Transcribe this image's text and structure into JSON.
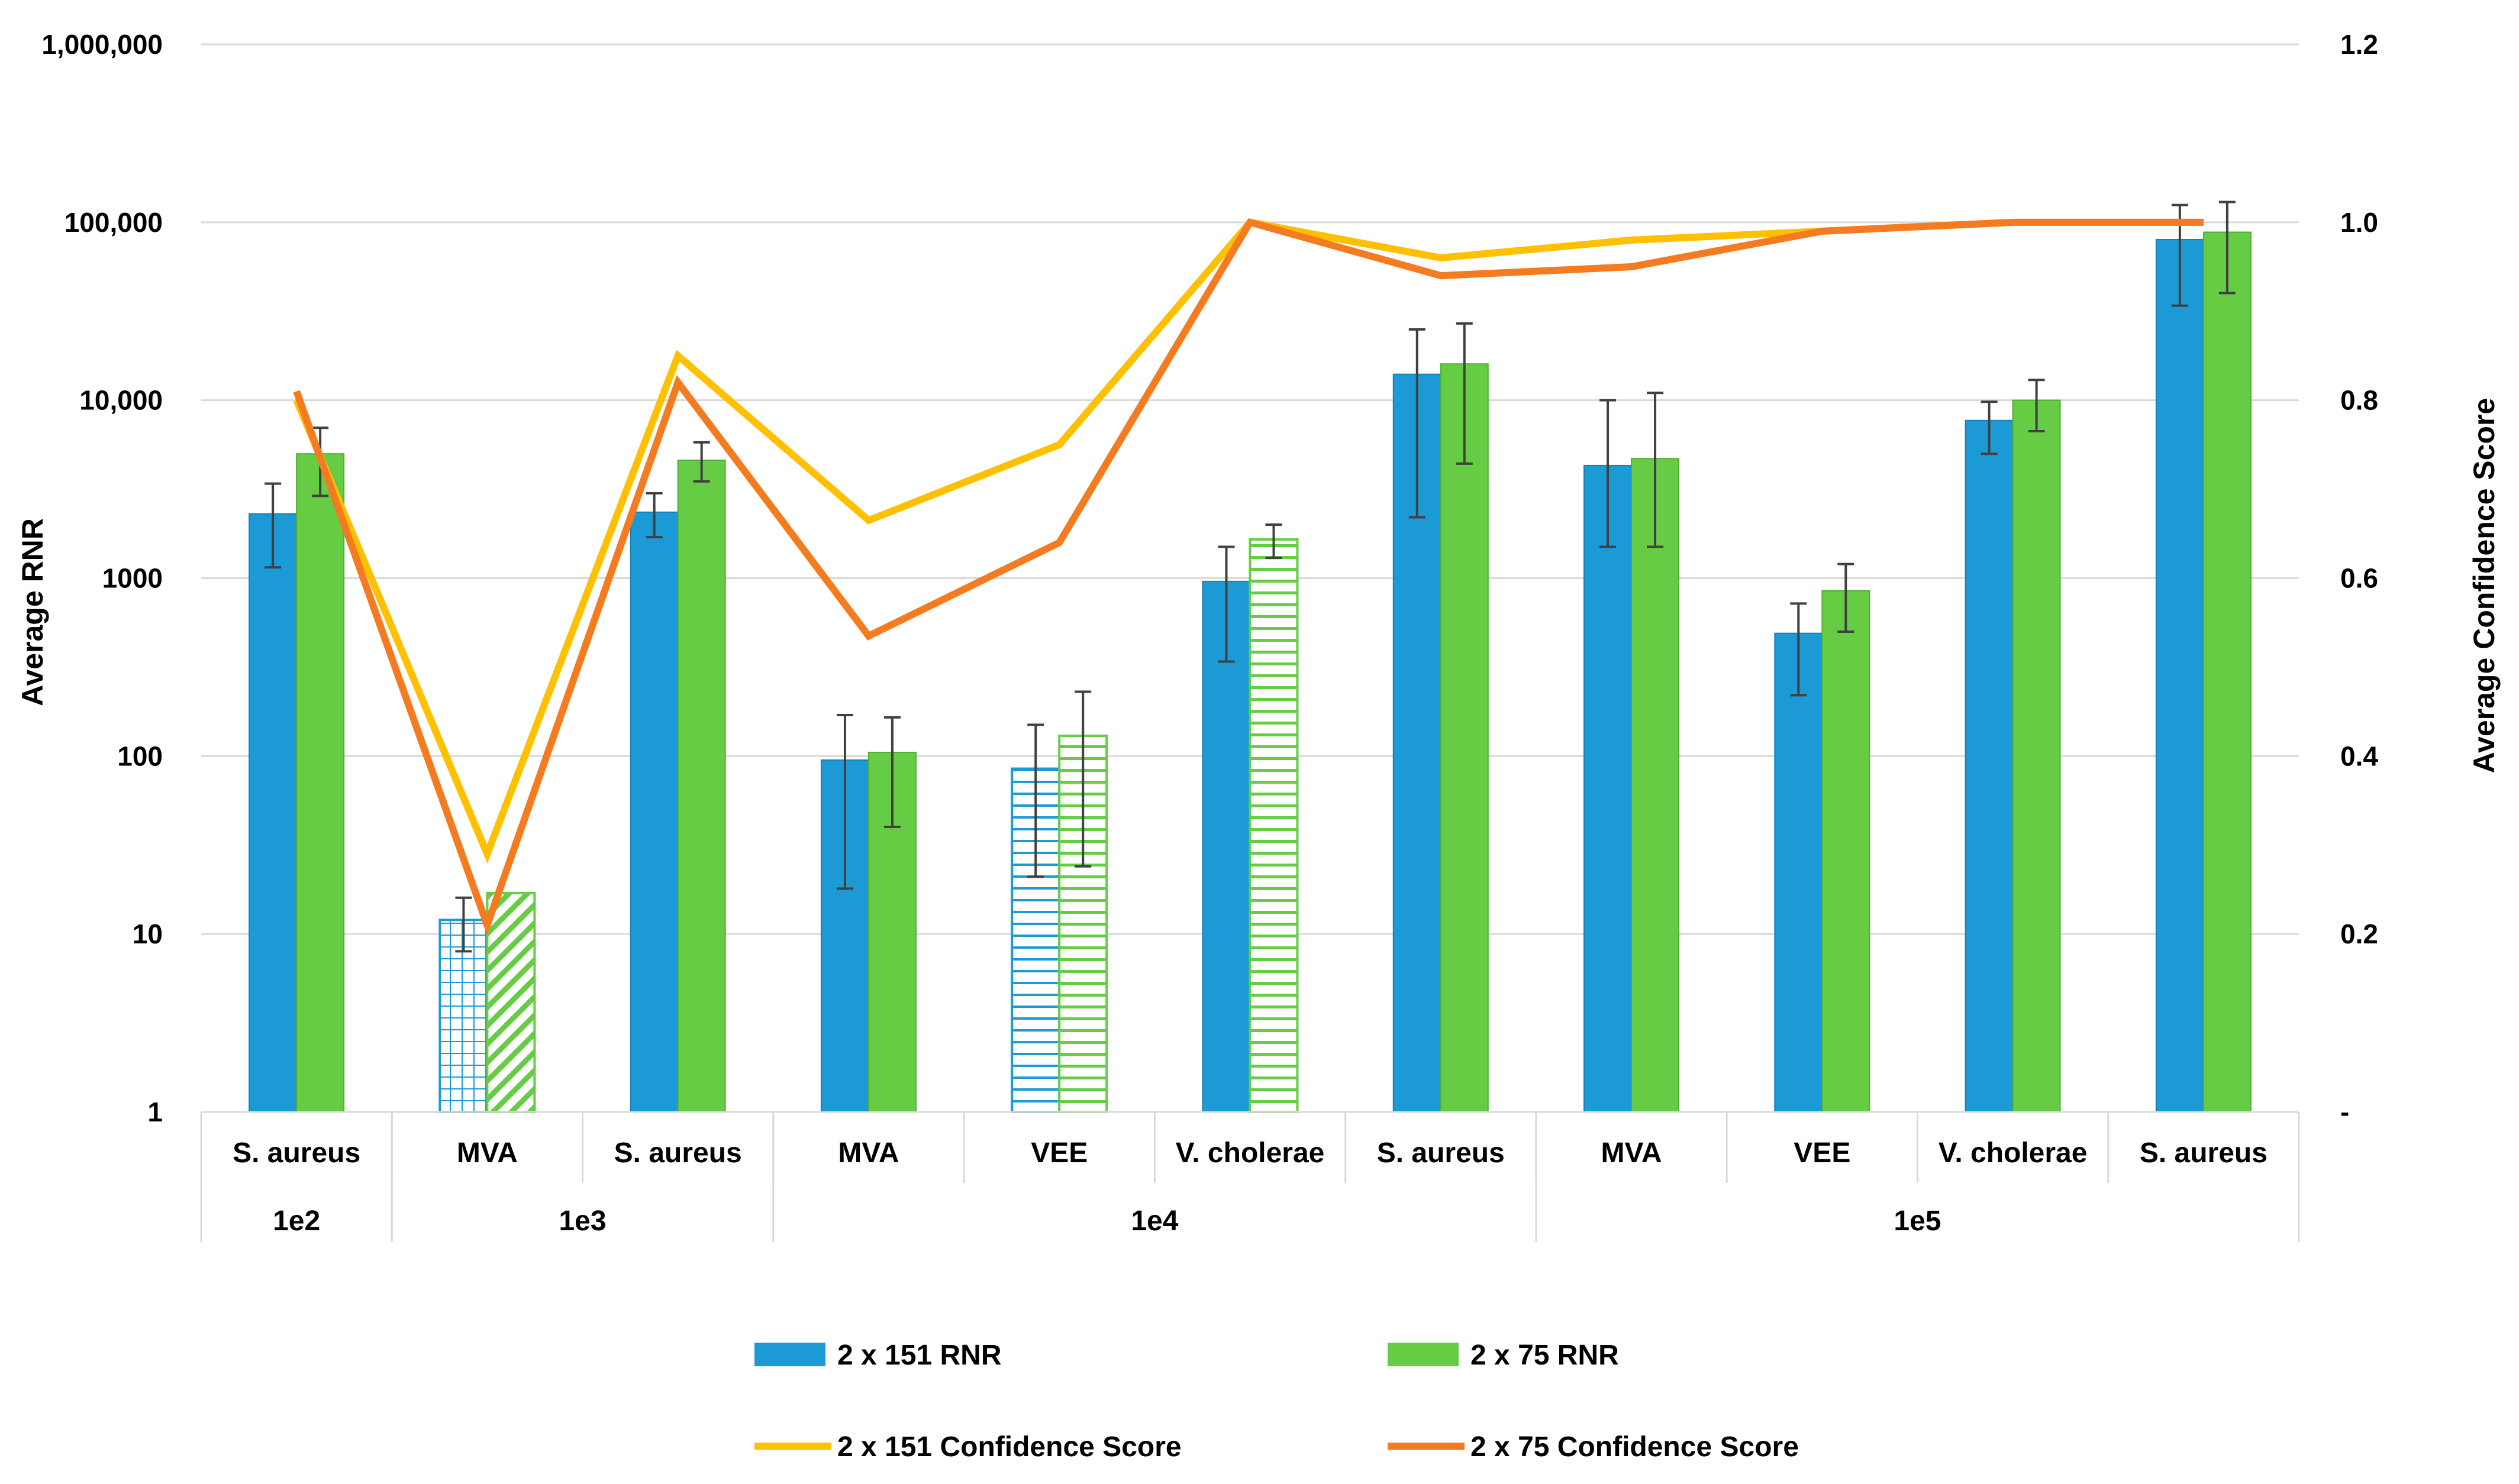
{
  "chart_data": {
    "type": "bar",
    "ylabel": "Average RNR",
    "y2label": "Average Confidence Score",
    "yscale": "log",
    "ylim": [
      1,
      1000000
    ],
    "y_ticks": [
      1,
      10,
      100,
      1000,
      10000,
      100000,
      1000000
    ],
    "y_tick_labels": [
      "1",
      "10",
      "100",
      "1000",
      "10,000",
      "100,000",
      "1,000,000"
    ],
    "y2lim": [
      0,
      1.2
    ],
    "y2_ticks": [
      0,
      0.2,
      0.4,
      0.6,
      0.8,
      1.0,
      1.2
    ],
    "y2_tick_labels": [
      "-",
      "0.2",
      "0.4",
      "0.6",
      "0.8",
      "1.0",
      "1.2"
    ],
    "gridlines": true,
    "legend_position": "bottom",
    "categories": [
      "S. aureus",
      "MVA",
      "S. aureus",
      "MVA",
      "VEE",
      "V. cholerae",
      "S. aureus",
      "MVA",
      "VEE",
      "V. cholerae",
      "S. aureus"
    ],
    "groups": [
      {
        "label": "1e2",
        "count": 1
      },
      {
        "label": "1e3",
        "count": 2
      },
      {
        "label": "1e4",
        "count": 4
      },
      {
        "label": "1e5",
        "count": 4
      }
    ],
    "bar_series": [
      {
        "name": "2 x 151  RNR",
        "color": "#1B9AD6",
        "values": [
          2300,
          12,
          2350,
          95,
          85,
          960,
          14000,
          4300,
          490,
          7700,
          80000
        ],
        "err_low": [
          1150,
          8,
          1700,
          18,
          21,
          340,
          2200,
          1500,
          220,
          5000,
          34000
        ],
        "err_high": [
          3400,
          16,
          3000,
          170,
          150,
          1500,
          25000,
          10000,
          720,
          9800,
          125000
        ],
        "hatched": [
          false,
          true,
          false,
          false,
          true,
          false,
          false,
          false,
          false,
          false,
          false
        ],
        "hatch_style": [
          "",
          "grid",
          "",
          "",
          "horizontal",
          "",
          "",
          "",
          "",
          "",
          ""
        ]
      },
      {
        "name": "2 x 75  RNR",
        "color": "#66CC44",
        "values": [
          5000,
          17,
          4600,
          105,
          130,
          1650,
          16000,
          4700,
          850,
          10000,
          88000
        ],
        "err_low": [
          2900,
          null,
          3500,
          40,
          24,
          1300,
          4400,
          1500,
          500,
          6700,
          40000
        ],
        "err_high": [
          7000,
          null,
          5800,
          165,
          230,
          2000,
          27000,
          11000,
          1200,
          13000,
          130000
        ],
        "hatched": [
          false,
          true,
          false,
          false,
          true,
          true,
          false,
          false,
          false,
          false,
          false
        ],
        "hatch_style": [
          "",
          "diagonal",
          "",
          "",
          "horizontal",
          "horizontal",
          "",
          "",
          "",
          "",
          ""
        ]
      }
    ],
    "line_series": [
      {
        "name": "2 x 151  Confidence Score",
        "color": "#FFC000",
        "values": [
          0.8,
          0.29,
          0.85,
          0.665,
          0.75,
          1.0,
          0.96,
          0.98,
          0.99,
          1.0,
          1.0
        ]
      },
      {
        "name": "2 x 75  Confidence Score",
        "color": "#F47B20",
        "values": [
          0.81,
          0.21,
          0.82,
          0.535,
          0.64,
          1.0,
          0.94,
          0.95,
          0.99,
          1.0,
          1.0
        ]
      }
    ]
  }
}
